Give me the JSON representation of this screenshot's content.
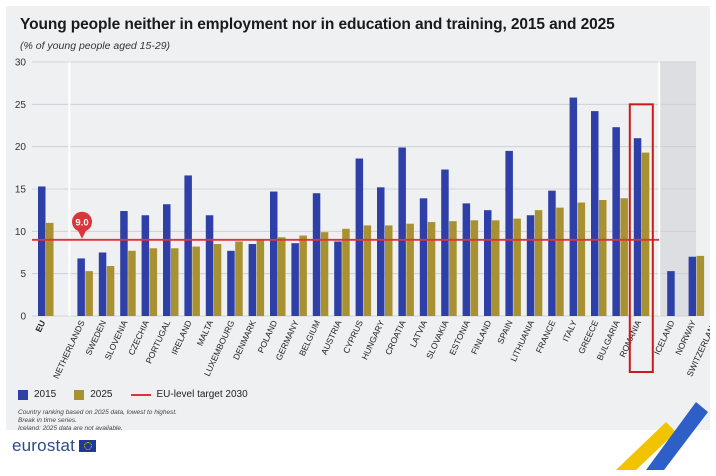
{
  "header": {
    "title": "Young people neither in employment nor in education and training, 2015 and 2025",
    "subtitle": "(% of young people aged 15-29)"
  },
  "legend": {
    "series_2015": "2015",
    "series_2025": "2025",
    "target": "EU-level target 2030"
  },
  "notes": [
    "Country ranking based on 2025 data, lowest to highest.",
    "Break in time series.",
    "Iceland: 2025 data are not available."
  ],
  "logo": {
    "text": "eurostat"
  },
  "colors": {
    "series_2015": "#2f3fa8",
    "series_2025": "#a89130",
    "target": "#d9353a",
    "highlight": "#cc1a1a",
    "grid": "#c8cbd0",
    "nonEU_shade": "#dcdee2"
  },
  "chart_data": {
    "type": "bar",
    "ylim": [
      0,
      30
    ],
    "yticks": [
      0,
      5,
      10,
      15,
      20,
      25,
      30
    ],
    "grid": true,
    "legend_position": "bottom-left",
    "target_value": 9.0,
    "target_label": "9.0",
    "highlight_category": "ROMANIA",
    "categories": [
      "EU",
      "NETHERLANDS",
      "SWEDEN",
      "SLOVENIA",
      "CZECHIA",
      "PORTUGAL",
      "IRELAND",
      "MALTA",
      "LUXEMBOURG",
      "DENMARK",
      "POLAND",
      "GERMANY",
      "BELGIUM",
      "AUSTRIA",
      "CYPRUS",
      "HUNGARY",
      "CROATIA",
      "LATVIA",
      "SLOVAKIA",
      "ESTONIA",
      "FINLAND",
      "SPAIN",
      "LITHUANIA",
      "FRANCE",
      "ITALY",
      "GREECE",
      "BULGARIA",
      "ROMANIA",
      "ICELAND",
      "NORWAY",
      "SWITZERLAND"
    ],
    "series": [
      {
        "name": "2015",
        "values": [
          15.3,
          6.8,
          7.5,
          12.4,
          11.9,
          13.2,
          16.6,
          11.9,
          7.7,
          8.5,
          14.7,
          8.6,
          14.5,
          8.8,
          18.6,
          15.2,
          19.9,
          13.9,
          17.3,
          13.3,
          12.5,
          19.5,
          11.9,
          14.8,
          25.8,
          24.2,
          22.3,
          21.0,
          5.3,
          7.0,
          7.4
        ]
      },
      {
        "name": "2025",
        "values": [
          11.0,
          5.3,
          5.9,
          7.7,
          8.0,
          8.0,
          8.2,
          8.5,
          8.8,
          9.1,
          9.3,
          9.5,
          9.9,
          10.3,
          10.7,
          10.7,
          10.9,
          11.1,
          11.2,
          11.3,
          11.3,
          11.5,
          12.5,
          12.8,
          13.4,
          13.7,
          13.9,
          19.3,
          null,
          7.1,
          8.8
        ]
      }
    ]
  }
}
